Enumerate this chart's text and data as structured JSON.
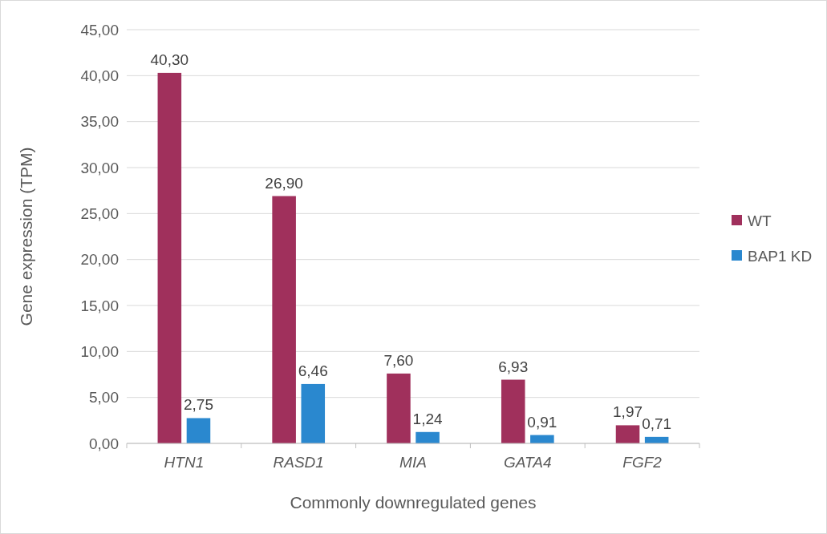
{
  "chart_data": {
    "type": "bar",
    "xlabel": "Commonly downregulated genes",
    "ylabel": "Gene expression (TPM)",
    "categories": [
      "HTN1",
      "RASD1",
      "MIA",
      "GATA4",
      "FGF2"
    ],
    "series": [
      {
        "name": "WT",
        "color": "#a0305c",
        "values": [
          40.3,
          26.9,
          7.6,
          6.93,
          1.97
        ],
        "value_labels": [
          "40,30",
          "26,90",
          "7,60",
          "6,93",
          "1,97"
        ]
      },
      {
        "name": "BAP1 KD",
        "color": "#2a88cf",
        "values": [
          2.75,
          6.46,
          1.24,
          0.91,
          0.71
        ],
        "value_labels": [
          "2,75",
          "6,46",
          "1,24",
          "0,91",
          "0,71"
        ]
      }
    ],
    "ylim": [
      0,
      45
    ],
    "yticks": [
      {
        "value": 0,
        "label": "0,00"
      },
      {
        "value": 5,
        "label": "5,00"
      },
      {
        "value": 10,
        "label": "10,00"
      },
      {
        "value": 15,
        "label": "15,00"
      },
      {
        "value": 20,
        "label": "20,00"
      },
      {
        "value": 25,
        "label": "25,00"
      },
      {
        "value": 30,
        "label": "30,00"
      },
      {
        "value": 35,
        "label": "35,00"
      },
      {
        "value": 40,
        "label": "40,00"
      },
      {
        "value": 45,
        "label": "45,00"
      }
    ],
    "grid": "y",
    "legend": "right"
  }
}
